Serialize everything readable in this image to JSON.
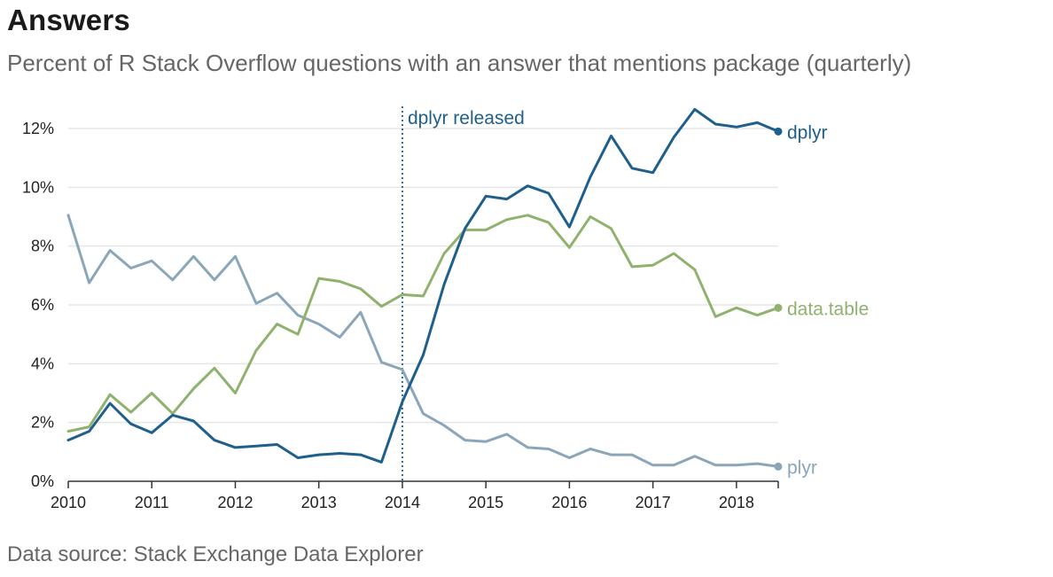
{
  "header": {
    "title": "Answers",
    "subtitle": "Percent of R Stack Overflow questions with an answer that mentions package (quarterly)"
  },
  "footer": {
    "source": "Data source: Stack Exchange Data Explorer"
  },
  "chart_data": {
    "type": "line",
    "xlabel": "",
    "ylabel": "",
    "xlim": [
      2010,
      2018.5
    ],
    "ylim": [
      0,
      12
    ],
    "x_ticks": [
      "2010",
      "2011",
      "2012",
      "2013",
      "2014",
      "2015",
      "2016",
      "2017",
      "2018"
    ],
    "y_ticks": [
      "0%",
      "2%",
      "4%",
      "6%",
      "8%",
      "10%",
      "12%"
    ],
    "grid": "horizontal",
    "legend": "direct labels at line ends",
    "x": [
      2010,
      2010.25,
      2010.5,
      2010.75,
      2011,
      2011.25,
      2011.5,
      2011.75,
      2012,
      2012.25,
      2012.5,
      2012.75,
      2013,
      2013.25,
      2013.5,
      2013.75,
      2014,
      2014.25,
      2014.5,
      2014.75,
      2015,
      2015.25,
      2015.5,
      2015.75,
      2016,
      2016.25,
      2016.5,
      2016.75,
      2017,
      2017.25,
      2017.5,
      2017.75,
      2018,
      2018.25,
      2018.5
    ],
    "series": [
      {
        "name": "dplyr",
        "color": "#1f5f8b",
        "values": [
          1.4,
          1.7,
          2.65,
          1.95,
          1.65,
          2.25,
          2.05,
          1.4,
          1.15,
          1.2,
          1.25,
          0.8,
          0.9,
          0.95,
          0.9,
          0.65,
          2.7,
          4.3,
          6.7,
          8.6,
          9.7,
          9.6,
          10.05,
          9.8,
          8.65,
          10.35,
          11.75,
          10.65,
          10.5,
          11.7,
          12.65,
          12.15,
          12.05,
          12.2,
          11.9
        ]
      },
      {
        "name": "data.table",
        "color": "#8fb26e",
        "values": [
          1.7,
          1.85,
          2.95,
          2.35,
          3.0,
          2.3,
          3.15,
          3.85,
          3.0,
          4.45,
          5.35,
          5.0,
          6.9,
          6.8,
          6.55,
          5.95,
          6.35,
          6.3,
          7.75,
          8.55,
          8.55,
          8.9,
          9.05,
          8.8,
          7.95,
          9.0,
          8.6,
          7.3,
          7.35,
          7.75,
          7.2,
          5.6,
          5.9,
          5.65,
          5.9
        ]
      },
      {
        "name": "plyr",
        "color": "#8ba6b9",
        "values": [
          9.05,
          6.75,
          7.85,
          7.25,
          7.5,
          6.85,
          7.65,
          6.85,
          7.65,
          6.05,
          6.4,
          5.65,
          5.35,
          4.9,
          5.75,
          4.05,
          3.8,
          2.3,
          1.9,
          1.4,
          1.35,
          1.6,
          1.15,
          1.1,
          0.8,
          1.1,
          0.9,
          0.9,
          0.55,
          0.55,
          0.85,
          0.55,
          0.55,
          0.6,
          0.5
        ]
      }
    ],
    "annotations": [
      {
        "text": "dplyr released",
        "x": 2014,
        "color": "#1f5f8b"
      }
    ]
  }
}
